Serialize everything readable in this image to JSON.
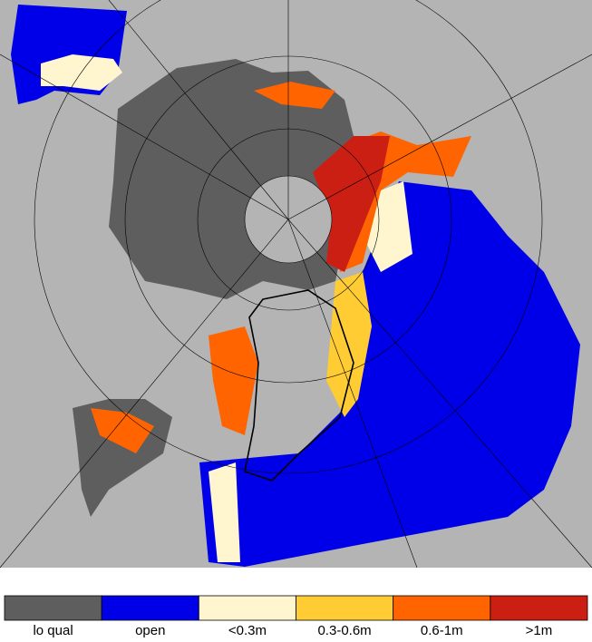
{
  "legend": {
    "items": [
      {
        "label": "lo qual",
        "color": "#5e5e5e"
      },
      {
        "label": "open",
        "color": "#0000e8"
      },
      {
        "label": "<0.3m",
        "color": "#fff6cf"
      },
      {
        "label": "0.3-0.6m",
        "color": "#ffcc33"
      },
      {
        "label": "0.6-1m",
        "color": "#ff6400"
      },
      {
        "label": ">1m",
        "color": "#cc1f14"
      }
    ]
  }
}
